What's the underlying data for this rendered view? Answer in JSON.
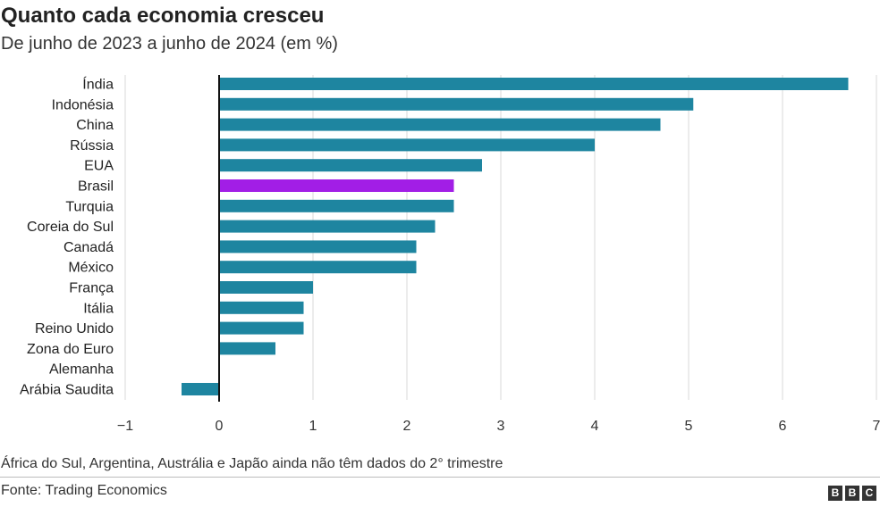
{
  "header": {
    "title": "Quanto cada economia cresceu",
    "subtitle": "De junho de 2023 a junho de 2024 (em %)"
  },
  "chart_data": {
    "type": "bar",
    "orientation": "horizontal",
    "categories": [
      "Índia",
      "Indonésia",
      "China",
      "Rússia",
      "EUA",
      "Brasil",
      "Turquia",
      "Coreia do Sul",
      "Canadá",
      "México",
      "França",
      "Itália",
      "Reino Unido",
      "Zona do Euro",
      "Alemanha",
      "Arábia Saudita"
    ],
    "values": [
      6.7,
      5.05,
      4.7,
      4.0,
      2.8,
      2.5,
      2.5,
      2.3,
      2.1,
      2.1,
      1.0,
      0.9,
      0.9,
      0.6,
      0.0,
      -0.4
    ],
    "highlight": "Brasil",
    "xlim": [
      -1,
      7
    ],
    "xticks": [
      -1,
      0,
      1,
      2,
      3,
      4,
      5,
      6,
      7
    ],
    "xtick_labels": [
      "−1",
      "0",
      "1",
      "2",
      "3",
      "4",
      "5",
      "6",
      "7"
    ],
    "grid": "vertical",
    "colors": {
      "bar": "#1e85a0",
      "highlight": "#a21ee6",
      "grid": "#d9d9d9",
      "zero_line": "#111111"
    }
  },
  "footer": {
    "note": "África do Sul, Argentina, Austrália e Japão ainda não têm dados do 2° trimestre",
    "source": "Fonte: Trading Economics",
    "logo_letters": [
      "B",
      "B",
      "C"
    ]
  }
}
